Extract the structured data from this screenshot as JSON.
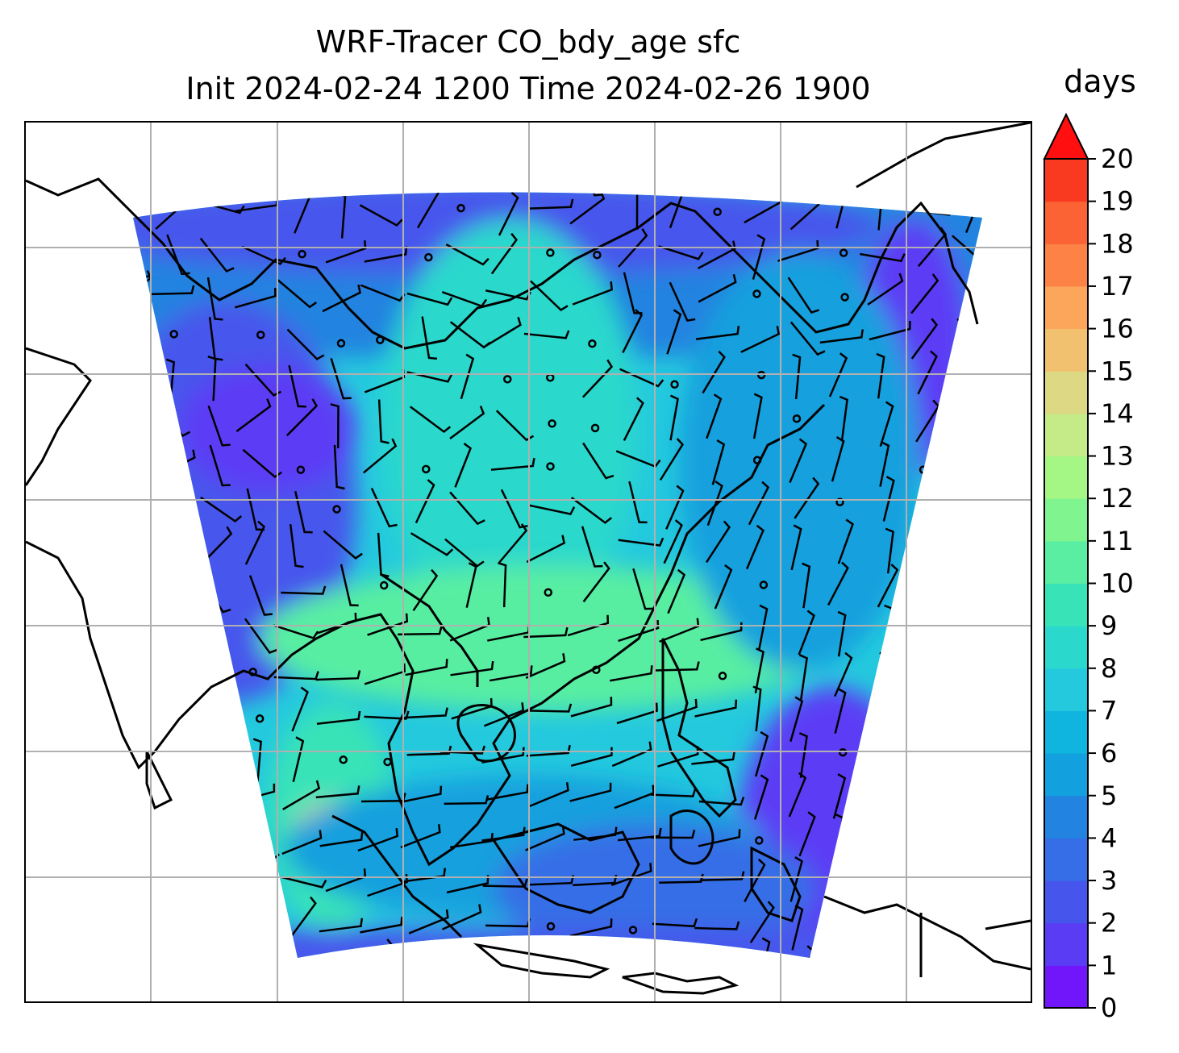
{
  "figure": {
    "title_line1": "WRF-Tracer CO_bdy_age sfc",
    "title_line2": "Init 2024-02-24 1200 Time 2024-02-26 1900"
  },
  "colorbar": {
    "label": "days",
    "min": 0,
    "max": 20,
    "ticks": [
      "0",
      "1",
      "2",
      "3",
      "4",
      "5",
      "6",
      "7",
      "8",
      "9",
      "10",
      "11",
      "12",
      "13",
      "14",
      "15",
      "16",
      "17",
      "18",
      "19",
      "20"
    ],
    "extend": "max",
    "colors": [
      "#7116fa",
      "#5b3cf5",
      "#4656ec",
      "#356ee6",
      "#2283e0",
      "#12a0de",
      "#10b5df",
      "#24c9de",
      "#2ad8cc",
      "#39e3b8",
      "#59eea2",
      "#7ff48f",
      "#a4f685",
      "#c5ea88",
      "#dcd883",
      "#f2c16f",
      "#fba65b",
      "#fc8246",
      "#fb6234",
      "#fa3a20",
      "#ff0f0f"
    ]
  },
  "map": {
    "grid": "on",
    "features": [
      "coastlines",
      "country borders",
      "wind barbs",
      "calm-wind circles"
    ]
  }
}
